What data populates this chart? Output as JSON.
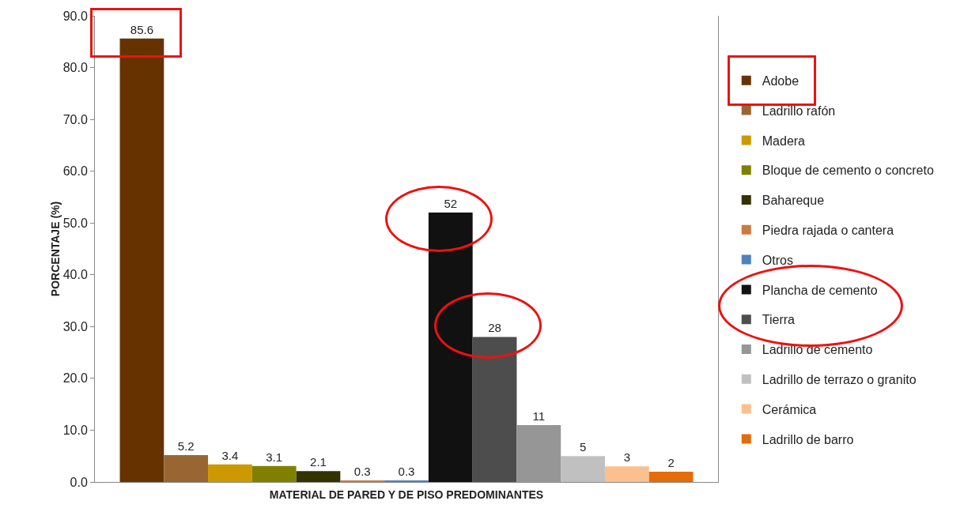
{
  "chart_data": {
    "type": "bar",
    "xlabel": "MATERIAL DE PARED Y DE PISO PREDOMINANTES",
    "ylabel": "PORCENTAJE (%)",
    "categories": [
      null
    ],
    "series": [
      {
        "name": "Adobe",
        "color": "#663300",
        "values": [
          85.6
        ]
      },
      {
        "name": "Ladrillo rafón",
        "color": "#996633",
        "values": [
          5.2
        ]
      },
      {
        "name": "Madera",
        "color": "#cc9900",
        "values": [
          3.4
        ]
      },
      {
        "name": "Bloque de cemento o concreto",
        "color": "#808000",
        "values": [
          3.1
        ]
      },
      {
        "name": "Bahareque",
        "color": "#333300",
        "values": [
          2.1
        ]
      },
      {
        "name": "Piedra rajada o cantera",
        "color": "#cc7a3d",
        "values": [
          0.3
        ]
      },
      {
        "name": "Otros",
        "color": "#4f81bd",
        "values": [
          0.3
        ]
      },
      {
        "name": "Plancha de cemento",
        "color": "#111111",
        "values": [
          52
        ]
      },
      {
        "name": "Tierra",
        "color": "#4d4d4d",
        "values": [
          28
        ]
      },
      {
        "name": "Ladrillo de cemento",
        "color": "#969696",
        "values": [
          11
        ]
      },
      {
        "name": "Ladrillo de terrazo o granito",
        "color": "#c0c0c0",
        "values": [
          5
        ]
      },
      {
        "name": "Cerámica",
        "color": "#fac090",
        "values": [
          3
        ]
      },
      {
        "name": "Ladrillo de barro",
        "color": "#e46c0a",
        "values": [
          2
        ]
      }
    ],
    "ylim": [
      0,
      90
    ],
    "yticks": [
      {
        "value": 0,
        "label": "0.0"
      },
      {
        "value": 10,
        "label": "10.0"
      },
      {
        "value": 20,
        "label": "20.0"
      },
      {
        "value": 30,
        "label": "30.0"
      },
      {
        "value": 40,
        "label": "40.0"
      },
      {
        "value": 50,
        "label": "50.0"
      },
      {
        "value": 60,
        "label": "60.0"
      },
      {
        "value": 70,
        "label": "70.0"
      },
      {
        "value": 80,
        "label": "80.0"
      },
      {
        "value": 90,
        "label": "90.0"
      }
    ],
    "data_labels": true,
    "legend": "right"
  }
}
